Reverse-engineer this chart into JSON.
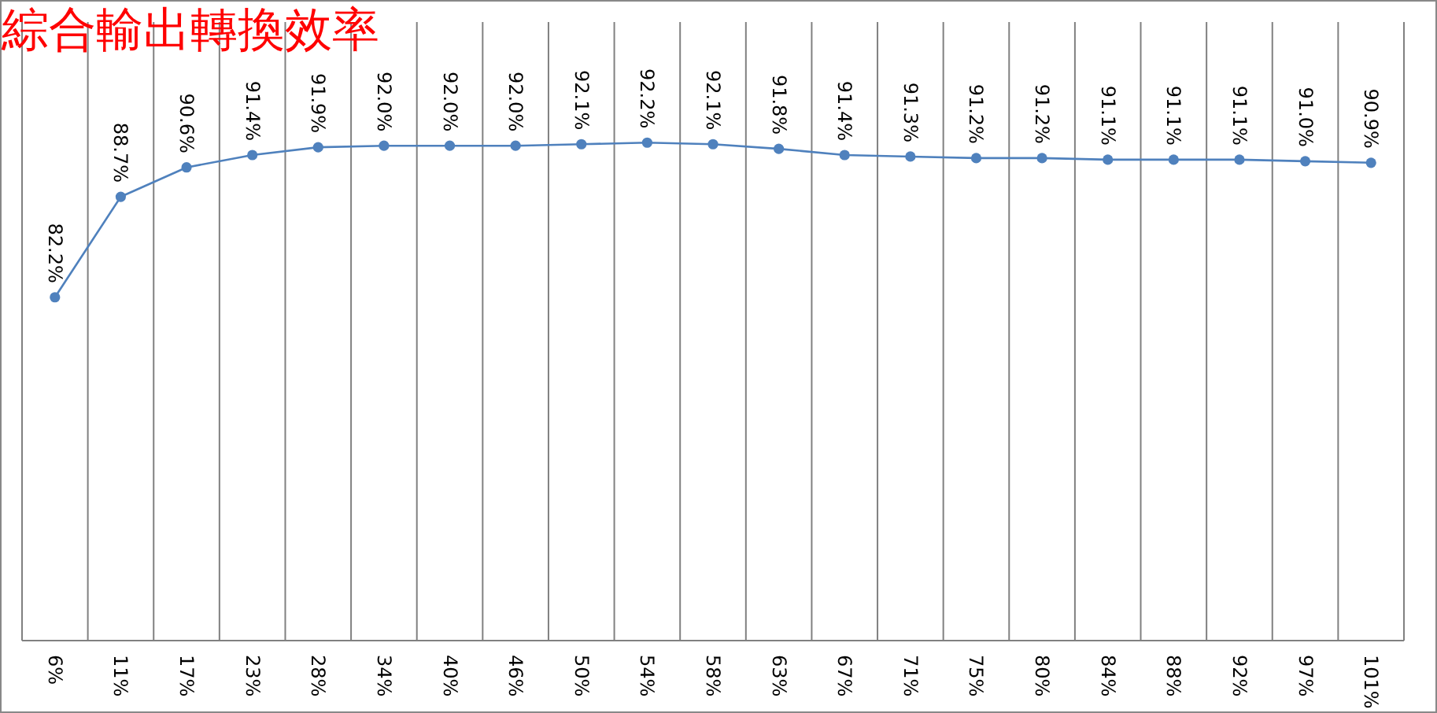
{
  "chart_data": {
    "type": "line",
    "title": "綜合輸出轉換效率",
    "categories": [
      "6%",
      "11%",
      "17%",
      "23%",
      "28%",
      "34%",
      "40%",
      "46%",
      "50%",
      "54%",
      "58%",
      "63%",
      "67%",
      "71%",
      "75%",
      "80%",
      "84%",
      "88%",
      "92%",
      "97%",
      "101%"
    ],
    "series": [
      {
        "color": "#4f81bd",
        "values": [
          82.2,
          88.7,
          90.6,
          91.4,
          91.9,
          92.0,
          92.0,
          92.0,
          92.1,
          92.2,
          92.1,
          91.8,
          91.4,
          91.3,
          91.2,
          91.2,
          91.1,
          91.1,
          91.1,
          91.0,
          90.9
        ],
        "value_labels": [
          "82.2%",
          "88.7%",
          "90.6%",
          "91.4%",
          "91.9%",
          "92.0%",
          "92.0%",
          "92.0%",
          "92.1%",
          "92.2%",
          "92.1%",
          "91.8%",
          "91.4%",
          "91.3%",
          "91.2%",
          "91.2%",
          "91.1%",
          "91.1%",
          "91.1%",
          "91.0%",
          "90.9%"
        ]
      }
    ],
    "ylim": [
      60,
      100
    ],
    "grid": "x",
    "marker": "circle",
    "line_style": "solid"
  }
}
